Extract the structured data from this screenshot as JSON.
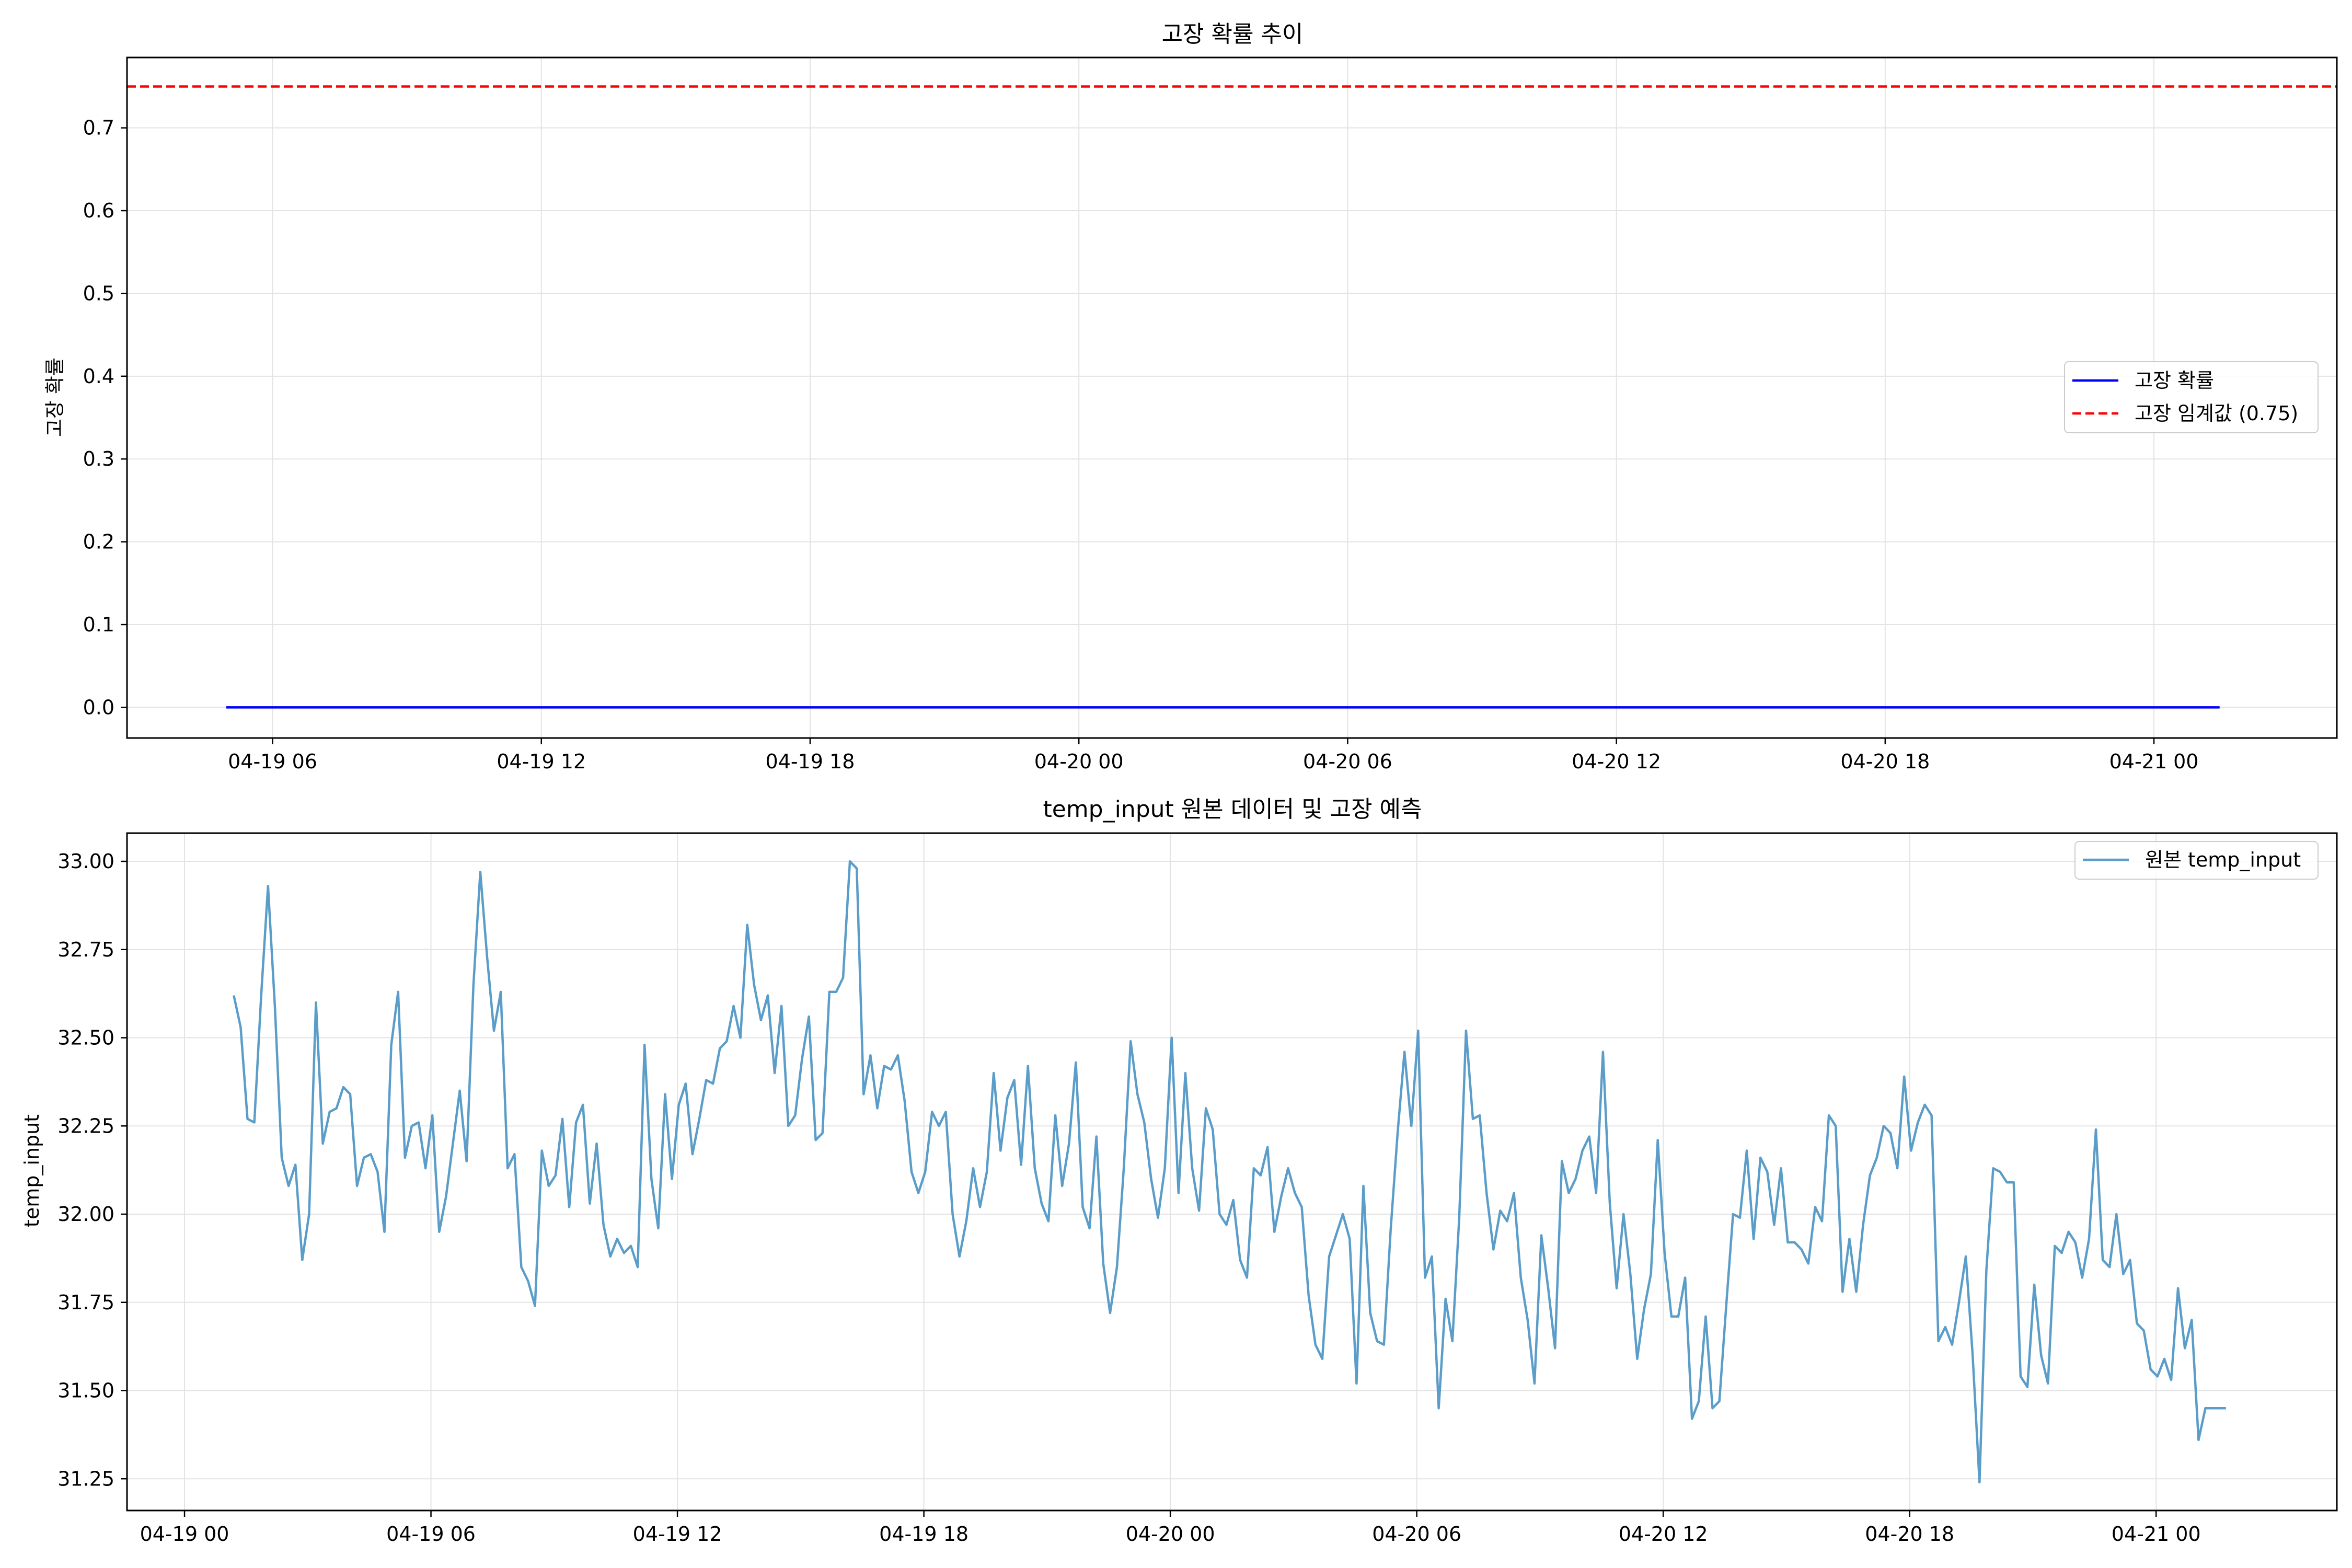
{
  "chart_data": [
    {
      "type": "line",
      "title": "고장 확률 추이",
      "xlabel": "",
      "ylabel": "고장 확률",
      "x_ticks": [
        "04-19 06",
        "04-19 12",
        "04-19 18",
        "04-20 00",
        "04-20 06",
        "04-20 12",
        "04-20 18",
        "04-21 00"
      ],
      "x_range": [
        "2024-04-19T02:45",
        "2024-04-21T04:05"
      ],
      "ylim": [
        -0.037,
        0.785
      ],
      "y_ticks": [
        0.0,
        0.1,
        0.2,
        0.3,
        0.4,
        0.5,
        0.6,
        0.7
      ],
      "y_tick_labels": [
        "0.0",
        "0.1",
        "0.2",
        "0.3",
        "0.4",
        "0.5",
        "0.6",
        "0.7"
      ],
      "grid": true,
      "legend_position": "center-right",
      "series": [
        {
          "name": "고장 확률",
          "color": "#0000ff",
          "style": "solid",
          "x_start": "2024-04-19T04:58",
          "x_end": "2024-04-21T01:28",
          "values": [
            0.0,
            0.0
          ]
        },
        {
          "name": "고장 임계값 (0.75)",
          "color": "#ff0000",
          "style": "dashed",
          "value": 0.75
        }
      ]
    },
    {
      "type": "line",
      "title": "temp_input 원본 데이터 및 고장 예측",
      "xlabel": "",
      "ylabel": "temp_input",
      "x_ticks": [
        "04-19 00",
        "04-19 06",
        "04-19 12",
        "04-19 18",
        "04-20 00",
        "04-20 06",
        "04-20 12",
        "04-20 18",
        "04-21 00"
      ],
      "x_range": [
        "2024-04-18T22:36",
        "2024-04-21T04:24"
      ],
      "ylim": [
        31.16,
        33.08
      ],
      "y_ticks": [
        31.25,
        31.5,
        31.75,
        32.0,
        32.25,
        32.5,
        32.75,
        33.0
      ],
      "y_tick_labels": [
        "31.25",
        "31.50",
        "31.75",
        "32.00",
        "32.25",
        "32.50",
        "32.75",
        "33.00"
      ],
      "grid": true,
      "legend_position": "top-right",
      "series": [
        {
          "name": "원본 temp_input",
          "color": "#5b9dc9",
          "x_start": "2024-04-19T01:12",
          "x_step_minutes": 10,
          "values": [
            32.62,
            32.53,
            32.27,
            32.26,
            32.62,
            32.93,
            32.59,
            32.16,
            32.08,
            32.14,
            31.87,
            32.0,
            32.6,
            32.2,
            32.29,
            32.3,
            32.36,
            32.34,
            32.08,
            32.16,
            32.17,
            32.12,
            31.95,
            32.48,
            32.63,
            32.16,
            32.25,
            32.26,
            32.13,
            32.28,
            31.95,
            32.05,
            32.2,
            32.35,
            32.15,
            32.65,
            32.97,
            32.73,
            32.52,
            32.63,
            32.13,
            32.17,
            31.85,
            31.81,
            31.74,
            32.18,
            32.08,
            32.11,
            32.27,
            32.02,
            32.26,
            32.31,
            32.03,
            32.2,
            31.97,
            31.88,
            31.93,
            31.89,
            31.91,
            31.85,
            32.48,
            32.1,
            31.96,
            32.34,
            32.1,
            32.31,
            32.37,
            32.17,
            32.27,
            32.38,
            32.37,
            32.47,
            32.49,
            32.59,
            32.5,
            32.82,
            32.65,
            32.55,
            32.62,
            32.4,
            32.59,
            32.25,
            32.28,
            32.44,
            32.56,
            32.21,
            32.23,
            32.63,
            32.63,
            32.67,
            33.0,
            32.98,
            32.34,
            32.45,
            32.3,
            32.42,
            32.41,
            32.45,
            32.32,
            32.12,
            32.06,
            32.12,
            32.29,
            32.25,
            32.29,
            32.0,
            31.88,
            31.98,
            32.13,
            32.02,
            32.12,
            32.4,
            32.18,
            32.33,
            32.38,
            32.14,
            32.42,
            32.13,
            32.03,
            31.98,
            32.28,
            32.08,
            32.2,
            32.43,
            32.02,
            31.96,
            32.22,
            31.86,
            31.72,
            31.85,
            32.13,
            32.49,
            32.34,
            32.26,
            32.1,
            31.99,
            32.13,
            32.5,
            32.06,
            32.4,
            32.13,
            32.01,
            32.3,
            32.24,
            32.0,
            31.97,
            32.04,
            31.87,
            31.82,
            32.13,
            32.11,
            32.19,
            31.95,
            32.05,
            32.13,
            32.06,
            32.02,
            31.77,
            31.63,
            31.59,
            31.88,
            31.94,
            32.0,
            31.93,
            31.52,
            32.08,
            31.72,
            31.64,
            31.63,
            31.96,
            32.23,
            32.46,
            32.25,
            32.52,
            31.82,
            31.88,
            31.45,
            31.76,
            31.64,
            31.99,
            32.52,
            32.27,
            32.28,
            32.06,
            31.9,
            32.01,
            31.98,
            32.06,
            31.82,
            31.7,
            31.52,
            31.94,
            31.79,
            31.62,
            32.15,
            32.06,
            32.1,
            32.18,
            32.22,
            32.06,
            32.46,
            32.03,
            31.79,
            32.0,
            31.83,
            31.59,
            31.73,
            31.83,
            32.21,
            31.89,
            31.71,
            31.71,
            31.82,
            31.42,
            31.47,
            31.71,
            31.45,
            31.47,
            31.74,
            32.0,
            31.99,
            32.18,
            31.93,
            32.16,
            32.12,
            31.97,
            32.13,
            31.92,
            31.92,
            31.9,
            31.86,
            32.02,
            31.98,
            32.28,
            32.25,
            31.78,
            31.93,
            31.78,
            31.97,
            32.11,
            32.16,
            32.25,
            32.23,
            32.13,
            32.39,
            32.18,
            32.26,
            32.31,
            32.28,
            31.64,
            31.68,
            31.63,
            31.75,
            31.88,
            31.6,
            31.24,
            31.84,
            32.13,
            32.12,
            32.09,
            32.09,
            31.54,
            31.51,
            31.8,
            31.6,
            31.52,
            31.91,
            31.89,
            31.95,
            31.92,
            31.82,
            31.93,
            32.24,
            31.87,
            31.85,
            32.0,
            31.83,
            31.87,
            31.69,
            31.67,
            31.56,
            31.54,
            31.59,
            31.53,
            31.79,
            31.62,
            31.7,
            31.36,
            31.45,
            31.45,
            31.45,
            31.45
          ]
        }
      ]
    }
  ]
}
